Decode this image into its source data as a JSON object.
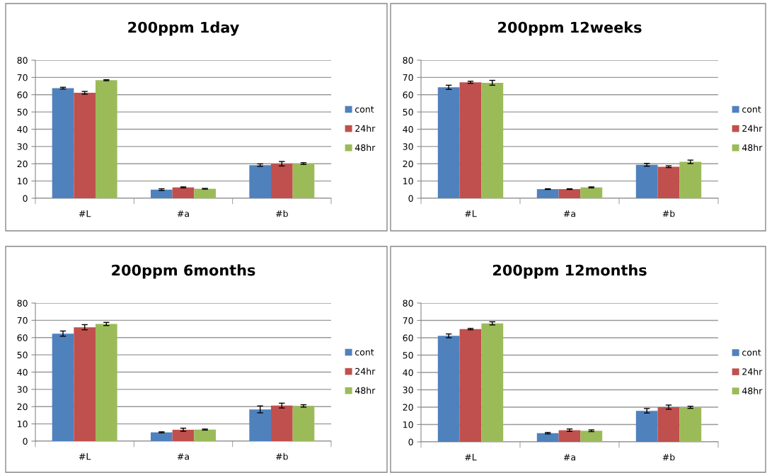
{
  "chart_data": [
    {
      "type": "bar",
      "title": "200ppm 1day",
      "categories": [
        "#L",
        "#a",
        "#b"
      ],
      "ylim": [
        0,
        80
      ],
      "yticks": [
        0,
        10,
        20,
        30,
        40,
        50,
        60,
        70,
        80
      ],
      "grid": "y",
      "legend": "right",
      "series": [
        {
          "name": "cont",
          "color": "#4f81bd",
          "values": [
            63.8,
            5.0,
            19.2
          ],
          "errors": [
            0.5,
            0.5,
            0.7
          ]
        },
        {
          "name": "24hr",
          "color": "#c0504d",
          "values": [
            61.1,
            6.3,
            20.0
          ],
          "errors": [
            0.8,
            0.3,
            1.3
          ]
        },
        {
          "name": "48hr",
          "color": "#9bbb59",
          "values": [
            68.4,
            5.5,
            20.1
          ],
          "errors": [
            0.3,
            0.2,
            0.5
          ]
        }
      ]
    },
    {
      "type": "bar",
      "title": "200ppm 12weeks",
      "categories": [
        "#L",
        "#a",
        "#b"
      ],
      "ylim": [
        0,
        80
      ],
      "yticks": [
        0,
        10,
        20,
        30,
        40,
        50,
        60,
        70,
        80
      ],
      "grid": "y",
      "legend": "right",
      "series": [
        {
          "name": "cont",
          "color": "#4f81bd",
          "values": [
            64.3,
            5.3,
            19.4
          ],
          "errors": [
            1.2,
            0.2,
            0.8
          ]
        },
        {
          "name": "24hr",
          "color": "#c0504d",
          "values": [
            67.2,
            5.3,
            18.3
          ],
          "errors": [
            0.6,
            0.2,
            0.5
          ]
        },
        {
          "name": "48hr",
          "color": "#9bbb59",
          "values": [
            66.9,
            6.3,
            21.1
          ],
          "errors": [
            1.4,
            0.3,
            1.0
          ]
        }
      ]
    },
    {
      "type": "bar",
      "title": "200ppm 6months",
      "categories": [
        "#L",
        "#a",
        "#b"
      ],
      "ylim": [
        0,
        80
      ],
      "yticks": [
        0,
        10,
        20,
        30,
        40,
        50,
        60,
        70,
        80
      ],
      "grid": "y",
      "legend": "right",
      "series": [
        {
          "name": "cont",
          "color": "#4f81bd",
          "values": [
            62.3,
            5.1,
            18.4
          ],
          "errors": [
            1.5,
            0.3,
            2.0
          ]
        },
        {
          "name": "24hr",
          "color": "#c0504d",
          "values": [
            66.0,
            6.6,
            20.6
          ],
          "errors": [
            1.5,
            0.9,
            1.4
          ]
        },
        {
          "name": "48hr",
          "color": "#9bbb59",
          "values": [
            67.9,
            6.7,
            20.4
          ],
          "errors": [
            0.9,
            0.3,
            0.7
          ]
        }
      ]
    },
    {
      "type": "bar",
      "title": "200ppm 12months",
      "categories": [
        "#L",
        "#a",
        "#b"
      ],
      "ylim": [
        0,
        80
      ],
      "yticks": [
        0,
        10,
        20,
        30,
        40,
        50,
        60,
        70,
        80
      ],
      "grid": "y",
      "legend": "right",
      "series": [
        {
          "name": "cont",
          "color": "#4f81bd",
          "values": [
            61.1,
            5.0,
            17.9
          ],
          "errors": [
            1.1,
            0.4,
            1.3
          ]
        },
        {
          "name": "24hr",
          "color": "#c0504d",
          "values": [
            65.0,
            6.7,
            20.0
          ],
          "errors": [
            0.4,
            0.7,
            1.2
          ]
        },
        {
          "name": "48hr",
          "color": "#9bbb59",
          "values": [
            68.3,
            6.4,
            19.9
          ],
          "errors": [
            0.9,
            0.5,
            0.6
          ]
        }
      ]
    }
  ]
}
